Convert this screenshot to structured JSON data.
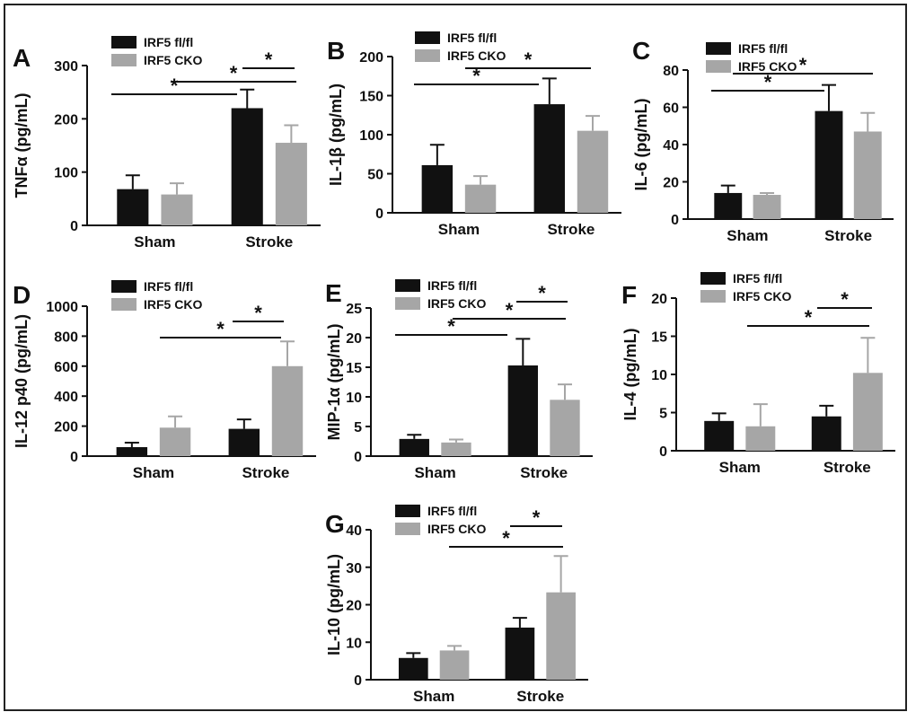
{
  "figure": {
    "categories": [
      "Sham",
      "Stroke"
    ],
    "series_colors": {
      "IRF5 fl/fl": "#111111",
      "IRF5 CKO": "#a6a6a6"
    }
  },
  "chart_data": [
    {
      "panel": "A",
      "type": "bar",
      "ylabel": "TNFα (pg/mL)",
      "ylim": [
        0,
        300
      ],
      "yticks": [
        0,
        100,
        200,
        300
      ],
      "categories": [
        "Sham",
        "Stroke"
      ],
      "series": [
        {
          "name": "IRF5 fl/fl",
          "values": [
            68,
            220
          ],
          "errors": [
            26,
            35
          ]
        },
        {
          "name": "IRF5 CKO",
          "values": [
            58,
            155
          ],
          "errors": [
            21,
            33
          ]
        }
      ],
      "significance": [
        {
          "from": [
            0,
            0
          ],
          "to": [
            1,
            0
          ],
          "label": "*"
        },
        {
          "from": [
            0,
            1
          ],
          "to": [
            1,
            1
          ],
          "label": "*"
        },
        {
          "from": [
            1,
            0
          ],
          "to": [
            1,
            1
          ],
          "label": "*"
        }
      ]
    },
    {
      "panel": "B",
      "type": "bar",
      "ylabel": "IL-1β (pg/mL)",
      "ylim": [
        0,
        200
      ],
      "yticks": [
        0,
        50,
        100,
        150,
        200
      ],
      "categories": [
        "Sham",
        "Stroke"
      ],
      "series": [
        {
          "name": "IRF5 fl/fl",
          "values": [
            61,
            139
          ],
          "errors": [
            26,
            33
          ]
        },
        {
          "name": "IRF5 CKO",
          "values": [
            36,
            105
          ],
          "errors": [
            11,
            19
          ]
        }
      ],
      "significance": [
        {
          "from": [
            0,
            0
          ],
          "to": [
            1,
            0
          ],
          "label": "*"
        },
        {
          "from": [
            0,
            1
          ],
          "to": [
            1,
            1
          ],
          "label": "*"
        }
      ]
    },
    {
      "panel": "C",
      "type": "bar",
      "ylabel": "IL-6 (pg/mL)",
      "ylim": [
        0,
        80
      ],
      "yticks": [
        0,
        20,
        40,
        60,
        80
      ],
      "categories": [
        "Sham",
        "Stroke"
      ],
      "series": [
        {
          "name": "IRF5 fl/fl",
          "values": [
            14,
            58
          ],
          "errors": [
            4,
            14
          ]
        },
        {
          "name": "IRF5 CKO",
          "values": [
            13,
            47
          ],
          "errors": [
            1,
            10
          ]
        }
      ],
      "significance": [
        {
          "from": [
            0,
            0
          ],
          "to": [
            1,
            0
          ],
          "label": "*"
        },
        {
          "from": [
            0,
            1
          ],
          "to": [
            1,
            1
          ],
          "label": "*"
        }
      ]
    },
    {
      "panel": "D",
      "type": "bar",
      "ylabel": "IL-12 p40 (pg/mL)",
      "ylim": [
        0,
        1000
      ],
      "yticks": [
        0,
        200,
        400,
        600,
        800,
        1000
      ],
      "categories": [
        "Sham",
        "Stroke"
      ],
      "series": [
        {
          "name": "IRF5 fl/fl",
          "values": [
            60,
            182
          ],
          "errors": [
            30,
            63
          ]
        },
        {
          "name": "IRF5 CKO",
          "values": [
            190,
            600
          ],
          "errors": [
            75,
            165
          ]
        }
      ],
      "significance": [
        {
          "from": [
            0,
            1
          ],
          "to": [
            1,
            1
          ],
          "label": "*"
        },
        {
          "from": [
            1,
            0
          ],
          "to": [
            1,
            1
          ],
          "label": "*"
        }
      ]
    },
    {
      "panel": "E",
      "type": "bar",
      "ylabel": "MIP-1α (pg/mL)",
      "ylim": [
        0,
        25
      ],
      "yticks": [
        0,
        5,
        10,
        15,
        20,
        25
      ],
      "categories": [
        "Sham",
        "Stroke"
      ],
      "series": [
        {
          "name": "IRF5 fl/fl",
          "values": [
            2.9,
            15.3
          ],
          "errors": [
            0.7,
            4.5
          ]
        },
        {
          "name": "IRF5 CKO",
          "values": [
            2.3,
            9.5
          ],
          "errors": [
            0.5,
            2.6
          ]
        }
      ],
      "significance": [
        {
          "from": [
            0,
            0
          ],
          "to": [
            1,
            0
          ],
          "label": "*"
        },
        {
          "from": [
            0,
            1
          ],
          "to": [
            1,
            1
          ],
          "label": "*"
        },
        {
          "from": [
            1,
            0
          ],
          "to": [
            1,
            1
          ],
          "label": "*"
        }
      ]
    },
    {
      "panel": "F",
      "type": "bar",
      "ylabel": "IL-4 (pg/mL)",
      "ylim": [
        0,
        20
      ],
      "yticks": [
        0,
        5,
        10,
        15,
        20
      ],
      "categories": [
        "Sham",
        "Stroke"
      ],
      "series": [
        {
          "name": "IRF5 fl/fl",
          "values": [
            3.9,
            4.5
          ],
          "errors": [
            1.0,
            1.4
          ]
        },
        {
          "name": "IRF5 CKO",
          "values": [
            3.2,
            10.2
          ],
          "errors": [
            2.9,
            4.6
          ]
        }
      ],
      "significance": [
        {
          "from": [
            0,
            1
          ],
          "to": [
            1,
            1
          ],
          "label": "*"
        },
        {
          "from": [
            1,
            0
          ],
          "to": [
            1,
            1
          ],
          "label": "*"
        }
      ]
    },
    {
      "panel": "G",
      "type": "bar",
      "ylabel": "IL-10 (pg/mL)",
      "ylim": [
        0,
        40
      ],
      "yticks": [
        0,
        10,
        20,
        30,
        40
      ],
      "categories": [
        "Sham",
        "Stroke"
      ],
      "series": [
        {
          "name": "IRF5 fl/fl",
          "values": [
            5.8,
            13.9
          ],
          "errors": [
            1.3,
            2.6
          ]
        },
        {
          "name": "IRF5 CKO",
          "values": [
            7.8,
            23.3
          ],
          "errors": [
            1.2,
            9.7
          ]
        }
      ],
      "significance": [
        {
          "from": [
            0,
            1
          ],
          "to": [
            1,
            1
          ],
          "label": "*"
        },
        {
          "from": [
            1,
            0
          ],
          "to": [
            1,
            1
          ],
          "label": "*"
        }
      ]
    }
  ]
}
